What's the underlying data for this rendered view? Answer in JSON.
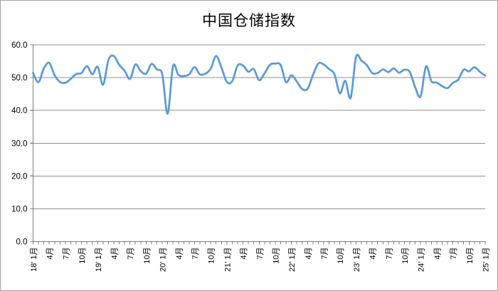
{
  "window": {
    "background": "#FFFFFF",
    "border_color": "#A6A6A6"
  },
  "chart_data": {
    "type": "line",
    "title": "中国仓储指数",
    "series_name": "中国仓储指数",
    "x_start": "2018-01",
    "x_end": "2025-01",
    "x_freq": "monthly",
    "x_label_every_n_months": 3,
    "x_tick_labels": [
      "18' 1月",
      "4月",
      "7月",
      "10月",
      "19' 1月",
      "4月",
      "7月",
      "10月",
      "20' 1月",
      "4月",
      "7月",
      "10月",
      "21' 1月",
      "4月",
      "7月",
      "10月",
      "22' 1月",
      "4月",
      "7月",
      "10月",
      "23' 1月",
      "4月",
      "7月",
      "10月",
      "24' 1月",
      "4月",
      "7月",
      "10月",
      "25' 1月"
    ],
    "ylim": [
      0,
      60
    ],
    "yticks": [
      0,
      10,
      20,
      30,
      40,
      50,
      60
    ],
    "ytick_labels": [
      "0.0",
      "10.0",
      "20.0",
      "30.0",
      "40.0",
      "50.0",
      "60.0"
    ],
    "grid": true,
    "legend": "none",
    "smooth": true,
    "line_color": "#5B9BD5",
    "line_width": 2.75,
    "grid_color": "#8F8F8F",
    "axis_color": "#7F7F7F",
    "values": [
      51.4,
      48.6,
      52.8,
      54.5,
      50.7,
      48.7,
      48.4,
      49.6,
      51.1,
      51.4,
      53.5,
      51.0,
      53.3,
      47.8,
      55.4,
      56.6,
      53.9,
      52.1,
      49.6,
      54.0,
      52.0,
      51.2,
      54.2,
      52.5,
      51.0,
      39.0,
      53.5,
      50.8,
      50.5,
      51.0,
      53.2,
      51.0,
      51.2,
      52.7,
      56.6,
      53.0,
      48.7,
      48.9,
      53.7,
      53.7,
      51.8,
      52.6,
      49.2,
      51.3,
      53.9,
      54.3,
      53.8,
      48.6,
      50.7,
      48.8,
      46.5,
      46.6,
      50.8,
      54.3,
      54.0,
      52.6,
      51.0,
      45.2,
      49.0,
      43.8,
      56.3,
      55.2,
      53.8,
      51.4,
      51.4,
      52.5,
      51.7,
      52.8,
      51.5,
      52.4,
      51.7,
      47.0,
      44.3,
      53.4,
      48.9,
      48.5,
      47.4,
      46.8,
      48.4,
      49.4,
      52.4,
      51.9,
      53.2,
      51.8,
      50.6
    ]
  }
}
